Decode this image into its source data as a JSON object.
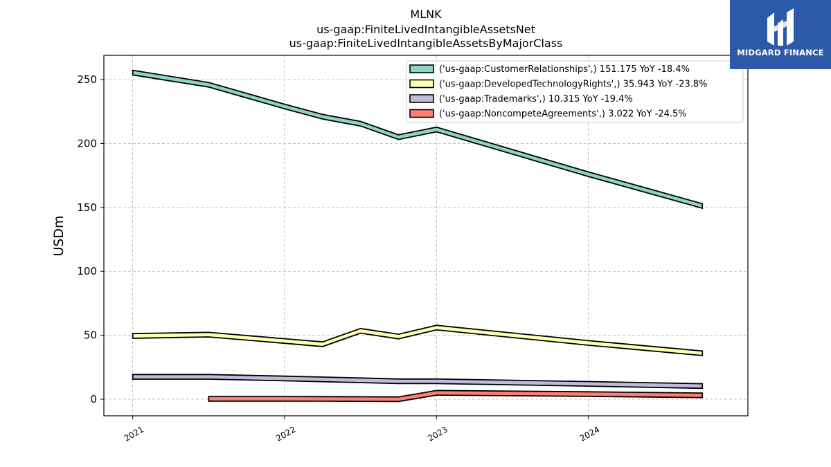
{
  "chart_data": {
    "type": "area",
    "title_lines": [
      "MLNK",
      "us-gaap:FiniteLivedIntangibleAssetsNet",
      "us-gaap:FiniteLivedIntangibleAssetsByMajorClass"
    ],
    "ylabel": "USDm",
    "xlabel": "",
    "ylim": [
      -13,
      269
    ],
    "xlim": [
      2020.81,
      2025.05
    ],
    "y_ticks": [
      0,
      50,
      100,
      150,
      200,
      250
    ],
    "x_ticks": [
      {
        "value": 2021,
        "label": "2021"
      },
      {
        "value": 2022,
        "label": "2022"
      },
      {
        "value": 2023,
        "label": "2023"
      },
      {
        "value": 2024,
        "label": "2024"
      }
    ],
    "grid": true,
    "legend_position": "top-right",
    "band_half_width": 1.8,
    "series": [
      {
        "name": "('us-gaap:CustomerRelationships',) 151.175 YoY -18.4%",
        "color": "#8dd3c7",
        "x": [
          2021.0,
          2021.5,
          2022.0,
          2022.25,
          2022.5,
          2022.75,
          2023.0,
          2024.0,
          2024.75
        ],
        "y": [
          255.5,
          246.0,
          229.0,
          221.0,
          215.5,
          205.0,
          211.0,
          176.0,
          151.175
        ]
      },
      {
        "name": "('us-gaap:DevelopedTechnologyRights',) 35.943 YoY -23.8%",
        "color": "#ffffb3",
        "x": [
          2021.0,
          2021.5,
          2022.0,
          2022.25,
          2022.5,
          2022.75,
          2023.0,
          2024.0,
          2024.75
        ],
        "y": [
          49.5,
          50.5,
          45.5,
          43.0,
          53.5,
          49.0,
          56.0,
          44.0,
          35.943
        ]
      },
      {
        "name": "('us-gaap:Trademarks',) 10.315 YoY -19.4%",
        "color": "#bebada",
        "x": [
          2021.0,
          2021.5,
          2022.0,
          2022.25,
          2022.5,
          2022.75,
          2023.0,
          2024.0,
          2024.75
        ],
        "y": [
          17.5,
          17.5,
          16.2,
          15.5,
          14.8,
          14.0,
          14.0,
          12.0,
          10.315
        ]
      },
      {
        "name": "('us-gaap:NoncompeteAgreements',) 3.022 YoY -24.5%",
        "color": "#fb8072",
        "x": [
          2021.5,
          2022.0,
          2022.25,
          2022.5,
          2022.75,
          2023.0,
          2024.0,
          2024.75
        ],
        "y": [
          0.3,
          0.3,
          0.2,
          0.1,
          0.0,
          5.0,
          4.0,
          3.022
        ]
      }
    ]
  },
  "logo": {
    "text": "MIDGARD FINANCE",
    "color": "#2c5aa8"
  }
}
